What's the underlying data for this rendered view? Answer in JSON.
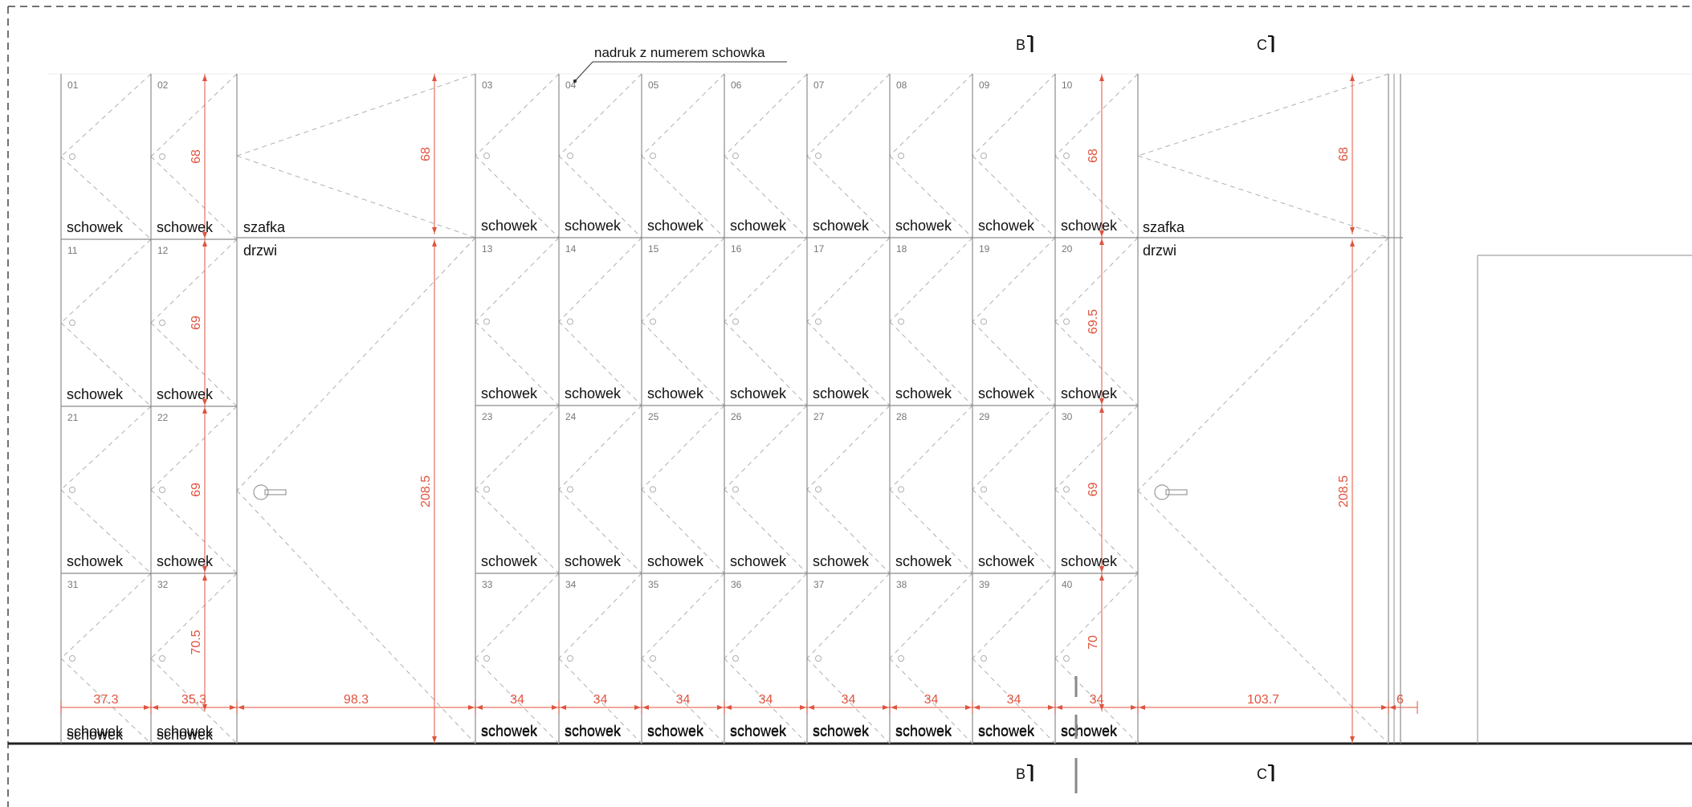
{
  "colors": {
    "line": "#8c8c8c",
    "dashed": "#b0b0b0",
    "dimension": "#e0533e",
    "text": "#111111",
    "locker_number": "#777777",
    "border": "#444444"
  },
  "annotation": "nadruk z numerem schowka",
  "section_marks": [
    "B",
    "C"
  ],
  "cabinet": {
    "top_label": "szafka",
    "door_label": "drzwi"
  },
  "locker_label": "schowek",
  "locker_numbers": [
    [
      "01",
      "02",
      "03",
      "04",
      "05",
      "06",
      "07",
      "08",
      "09",
      "10"
    ],
    [
      "11",
      "12",
      "13",
      "14",
      "15",
      "16",
      "17",
      "18",
      "19",
      "20"
    ],
    [
      "21",
      "22",
      "23",
      "24",
      "25",
      "26",
      "27",
      "28",
      "29",
      "30"
    ],
    [
      "31",
      "32",
      "33",
      "34",
      "35",
      "36",
      "37",
      "38",
      "39",
      "40"
    ]
  ],
  "width_dims": [
    "37.3",
    "35.3",
    "98.3",
    "34",
    "34",
    "34",
    "34",
    "34",
    "34",
    "34",
    "34",
    "103.7",
    "6"
  ],
  "height_dims_left": [
    "68",
    "69",
    "69",
    "70.5"
  ],
  "height_dims_right": [
    "68",
    "69.5",
    "69",
    "70"
  ],
  "cabinet_height_dims": [
    "68",
    "208.5"
  ],
  "icons": {
    "handle": "door-handle-icon",
    "hinge": "hinge-marker-icon"
  }
}
